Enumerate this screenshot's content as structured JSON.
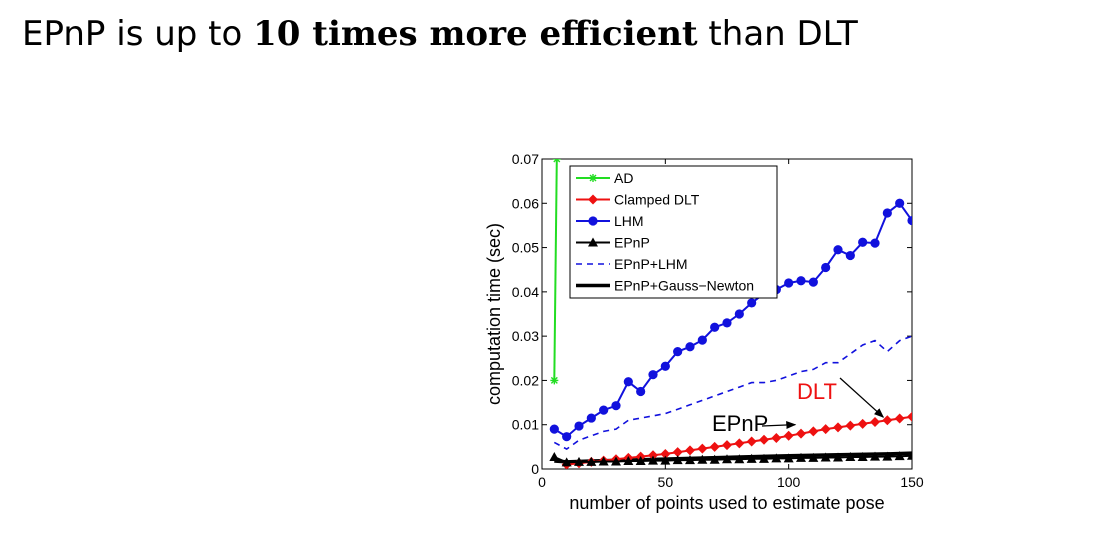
{
  "slide": {
    "title_pre": "EPnP is up to ",
    "title_bold": "10 times more efficient",
    "title_post": " than DLT"
  },
  "chart_data": {
    "type": "line",
    "xlabel": "number of points used to estimate pose",
    "ylabel": "computation time (sec)",
    "xlim": [
      0,
      150
    ],
    "ylim": [
      0,
      0.07
    ],
    "xticks": [
      0,
      50,
      100,
      150
    ],
    "yticks": [
      0,
      0.01,
      0.02,
      0.03,
      0.04,
      0.05,
      0.06,
      0.07
    ],
    "ytick_labels": [
      "0",
      "0.01",
      "0.02",
      "0.03",
      "0.04",
      "0.05",
      "0.06",
      "0.07"
    ],
    "legend_placement": "top-left",
    "series": [
      {
        "name": "AD",
        "color": "#22dd22",
        "style": "solid",
        "marker": "star",
        "x": [
          5,
          6
        ],
        "y": [
          0.02,
          0.07
        ]
      },
      {
        "name": "Clamped DLT",
        "color": "#ee1111",
        "style": "solid",
        "marker": "diamond",
        "x": [
          10,
          15,
          20,
          25,
          30,
          35,
          40,
          45,
          50,
          55,
          60,
          65,
          70,
          75,
          80,
          85,
          90,
          95,
          100,
          105,
          110,
          115,
          120,
          125,
          130,
          135,
          140,
          145,
          150
        ],
        "y": [
          0.001,
          0.0013,
          0.0016,
          0.0019,
          0.0022,
          0.0025,
          0.0028,
          0.0031,
          0.0034,
          0.0038,
          0.0042,
          0.0046,
          0.005,
          0.0054,
          0.0058,
          0.0062,
          0.0066,
          0.007,
          0.0075,
          0.008,
          0.0085,
          0.009,
          0.0094,
          0.0098,
          0.0102,
          0.0106,
          0.011,
          0.0114,
          0.0118
        ]
      },
      {
        "name": "LHM",
        "color": "#1111dd",
        "style": "solid",
        "marker": "circle",
        "x": [
          5,
          10,
          15,
          20,
          25,
          30,
          35,
          40,
          45,
          50,
          55,
          60,
          65,
          70,
          75,
          80,
          85,
          90,
          95,
          100,
          105,
          110,
          115,
          120,
          125,
          130,
          135,
          140,
          145,
          150
        ],
        "y": [
          0.009,
          0.0073,
          0.0097,
          0.0115,
          0.0133,
          0.0143,
          0.0197,
          0.0175,
          0.0213,
          0.0232,
          0.0265,
          0.0276,
          0.0291,
          0.032,
          0.033,
          0.035,
          0.0375,
          0.0396,
          0.0405,
          0.042,
          0.0425,
          0.0422,
          0.0455,
          0.0495,
          0.0482,
          0.0512,
          0.051,
          0.0578,
          0.06,
          0.0561
        ]
      },
      {
        "name": "EPnP",
        "color": "#000000",
        "style": "solid",
        "marker": "triangle",
        "x": [
          5,
          10,
          15,
          20,
          25,
          30,
          35,
          40,
          45,
          50,
          55,
          60,
          65,
          70,
          75,
          80,
          85,
          90,
          95,
          100,
          105,
          110,
          115,
          120,
          125,
          130,
          135,
          140,
          145,
          150
        ],
        "y": [
          0.0027,
          0.0015,
          0.0016,
          0.0016,
          0.0017,
          0.0017,
          0.0018,
          0.0018,
          0.0019,
          0.0019,
          0.002,
          0.002,
          0.0021,
          0.0021,
          0.0022,
          0.0022,
          0.0023,
          0.0023,
          0.0024,
          0.0024,
          0.0025,
          0.0025,
          0.0026,
          0.0026,
          0.0027,
          0.0027,
          0.0028,
          0.0028,
          0.0029,
          0.003
        ]
      },
      {
        "name": "EPnP+LHM",
        "color": "#1111dd",
        "style": "dashed",
        "marker": "none",
        "x": [
          5,
          10,
          15,
          20,
          25,
          30,
          35,
          40,
          45,
          50,
          55,
          60,
          65,
          70,
          75,
          80,
          85,
          90,
          95,
          100,
          105,
          110,
          115,
          120,
          125,
          130,
          135,
          140,
          145,
          150
        ],
        "y": [
          0.006,
          0.0045,
          0.0065,
          0.0075,
          0.0085,
          0.009,
          0.011,
          0.0115,
          0.012,
          0.0125,
          0.0135,
          0.0145,
          0.0155,
          0.0165,
          0.0175,
          0.0185,
          0.0195,
          0.0195,
          0.02,
          0.021,
          0.022,
          0.0225,
          0.024,
          0.024,
          0.026,
          0.028,
          0.029,
          0.0265,
          0.029,
          0.03
        ]
      },
      {
        "name": "EPnP+Gauss−Newton",
        "color": "#000000",
        "style": "thick",
        "marker": "none",
        "x": [
          5,
          10,
          20,
          40,
          60,
          80,
          100,
          120,
          140,
          150
        ],
        "y": [
          0.0018,
          0.0016,
          0.0018,
          0.0021,
          0.0024,
          0.0027,
          0.003,
          0.0032,
          0.0034,
          0.0036
        ]
      }
    ],
    "annotations": [
      {
        "text": "DLT",
        "color": "#ee1111",
        "point_x": 140,
        "point_y": 0.0108
      },
      {
        "text": "EPnP",
        "color": "#000000",
        "point_x": 97,
        "point_y": 0.0055
      }
    ]
  }
}
